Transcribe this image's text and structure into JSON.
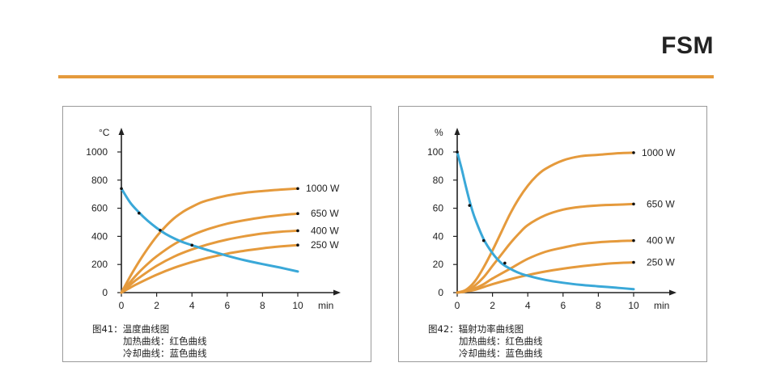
{
  "header": {
    "brand": "FSM"
  },
  "colors": {
    "heating": "#e59a3c",
    "cooling": "#3aa8d8",
    "axis": "#222222",
    "rule": "#e59a3c"
  },
  "chart_data": [
    {
      "type": "line",
      "ylabel": "°C",
      "xlabel": "min",
      "xlim": [
        0,
        10
      ],
      "ylim": [
        0,
        1000
      ],
      "x_ticks": [
        0,
        2,
        4,
        6,
        8,
        10
      ],
      "y_ticks": [
        0,
        200,
        400,
        600,
        800,
        1000
      ],
      "series": [
        {
          "name": "1000 W",
          "kind": "heating",
          "x": [
            0,
            0.5,
            1,
            1.5,
            2,
            2.5,
            3,
            3.5,
            4,
            4.5,
            5,
            6,
            7,
            8,
            9,
            10
          ],
          "y": [
            0,
            115,
            220,
            315,
            400,
            470,
            530,
            575,
            610,
            640,
            660,
            690,
            710,
            722,
            732,
            740
          ]
        },
        {
          "name": "650 W",
          "kind": "heating",
          "x": [
            0,
            0.5,
            1,
            1.5,
            2,
            3,
            4,
            5,
            6,
            7,
            8,
            9,
            10
          ],
          "y": [
            0,
            75,
            145,
            205,
            258,
            345,
            408,
            455,
            490,
            515,
            535,
            550,
            562
          ]
        },
        {
          "name": "400 W",
          "kind": "heating",
          "x": [
            0,
            0.5,
            1,
            2,
            3,
            4,
            5,
            6,
            7,
            8,
            9,
            10
          ],
          "y": [
            0,
            55,
            105,
            190,
            257,
            307,
            346,
            377,
            401,
            420,
            433,
            440
          ]
        },
        {
          "name": "250 W",
          "kind": "heating",
          "x": [
            0,
            0.5,
            1,
            2,
            3,
            4,
            5,
            6,
            7,
            8,
            9,
            10
          ],
          "y": [
            0,
            35,
            68,
            127,
            177,
            217,
            250,
            277,
            298,
            315,
            328,
            338
          ]
        },
        {
          "name": "",
          "kind": "cooling",
          "x": [
            0,
            0.5,
            1,
            1.5,
            2,
            2.5,
            3,
            3.5,
            4,
            5,
            6,
            7,
            8,
            9,
            10
          ],
          "y": [
            740,
            640,
            570,
            510,
            460,
            418,
            385,
            358,
            337,
            298,
            262,
            230,
            203,
            178,
            150
          ]
        }
      ],
      "markers": [
        {
          "x": 0,
          "y": 740
        },
        {
          "x": 1,
          "y": 565
        },
        {
          "x": 2.2,
          "y": 443
        },
        {
          "x": 4,
          "y": 337
        },
        {
          "x": 10,
          "y": 740
        },
        {
          "x": 10,
          "y": 562
        },
        {
          "x": 10,
          "y": 440
        },
        {
          "x": 10,
          "y": 338
        }
      ],
      "caption": {
        "title": "图41：温度曲线图",
        "line1": "加热曲线：红色曲线",
        "line2": "冷却曲线：蓝色曲线"
      }
    },
    {
      "type": "line",
      "ylabel": "%",
      "xlabel": "min",
      "xlim": [
        0,
        10
      ],
      "ylim": [
        0,
        100
      ],
      "x_ticks": [
        0,
        2,
        4,
        6,
        8,
        10
      ],
      "y_ticks": [
        0,
        20,
        40,
        60,
        80,
        100
      ],
      "series": [
        {
          "name": "1000 W",
          "kind": "heating",
          "x": [
            0,
            0.5,
            1,
            1.5,
            2,
            2.5,
            3,
            3.5,
            4,
            4.5,
            5,
            6,
            7,
            8,
            9,
            10
          ],
          "y": [
            0,
            2,
            8,
            18,
            30,
            43,
            56,
            67,
            76,
            83,
            88,
            94,
            97,
            98,
            99,
            99.5
          ]
        },
        {
          "name": "650 W",
          "kind": "heating",
          "x": [
            0,
            0.5,
            1,
            1.5,
            2,
            2.5,
            3,
            3.5,
            4,
            5,
            6,
            7,
            8,
            9,
            10
          ],
          "y": [
            0,
            1,
            5,
            11,
            19,
            27,
            35,
            42,
            48,
            55,
            59,
            61,
            62,
            62.5,
            63
          ]
        },
        {
          "name": "400 W",
          "kind": "heating",
          "x": [
            0,
            0.5,
            1,
            1.5,
            2,
            3,
            4,
            5,
            6,
            7,
            8,
            9,
            10
          ],
          "y": [
            0,
            1,
            3,
            6,
            10,
            17,
            24,
            29,
            32,
            34.5,
            35.8,
            36.5,
            37
          ]
        },
        {
          "name": "250 W",
          "kind": "heating",
          "x": [
            0,
            0.5,
            1,
            2,
            3,
            4,
            5,
            6,
            7,
            8,
            9,
            10
          ],
          "y": [
            0,
            1,
            2,
            6,
            9.5,
            12.5,
            15,
            17,
            18.7,
            20,
            21,
            21.5
          ]
        },
        {
          "name": "",
          "kind": "cooling",
          "x": [
            0,
            0.25,
            0.5,
            0.75,
            1,
            1.5,
            2,
            2.5,
            3,
            3.5,
            4,
            5,
            6,
            7,
            8,
            9,
            10
          ],
          "y": [
            100,
            88,
            75,
            63,
            53,
            38,
            28,
            21,
            17,
            14,
            12,
            9,
            7,
            5.5,
            4.5,
            3.5,
            2.5
          ]
        }
      ],
      "markers": [
        {
          "x": 0,
          "y": 100
        },
        {
          "x": 0.7,
          "y": 62
        },
        {
          "x": 1.5,
          "y": 37
        },
        {
          "x": 2.7,
          "y": 21
        },
        {
          "x": 10,
          "y": 99.5
        },
        {
          "x": 10,
          "y": 63
        },
        {
          "x": 10,
          "y": 37
        },
        {
          "x": 10,
          "y": 21.5
        }
      ],
      "caption": {
        "title": "图42：辐射功率曲线图",
        "line1": "加热曲线：红色曲线",
        "line2": "冷却曲线：蓝色曲线"
      }
    }
  ]
}
